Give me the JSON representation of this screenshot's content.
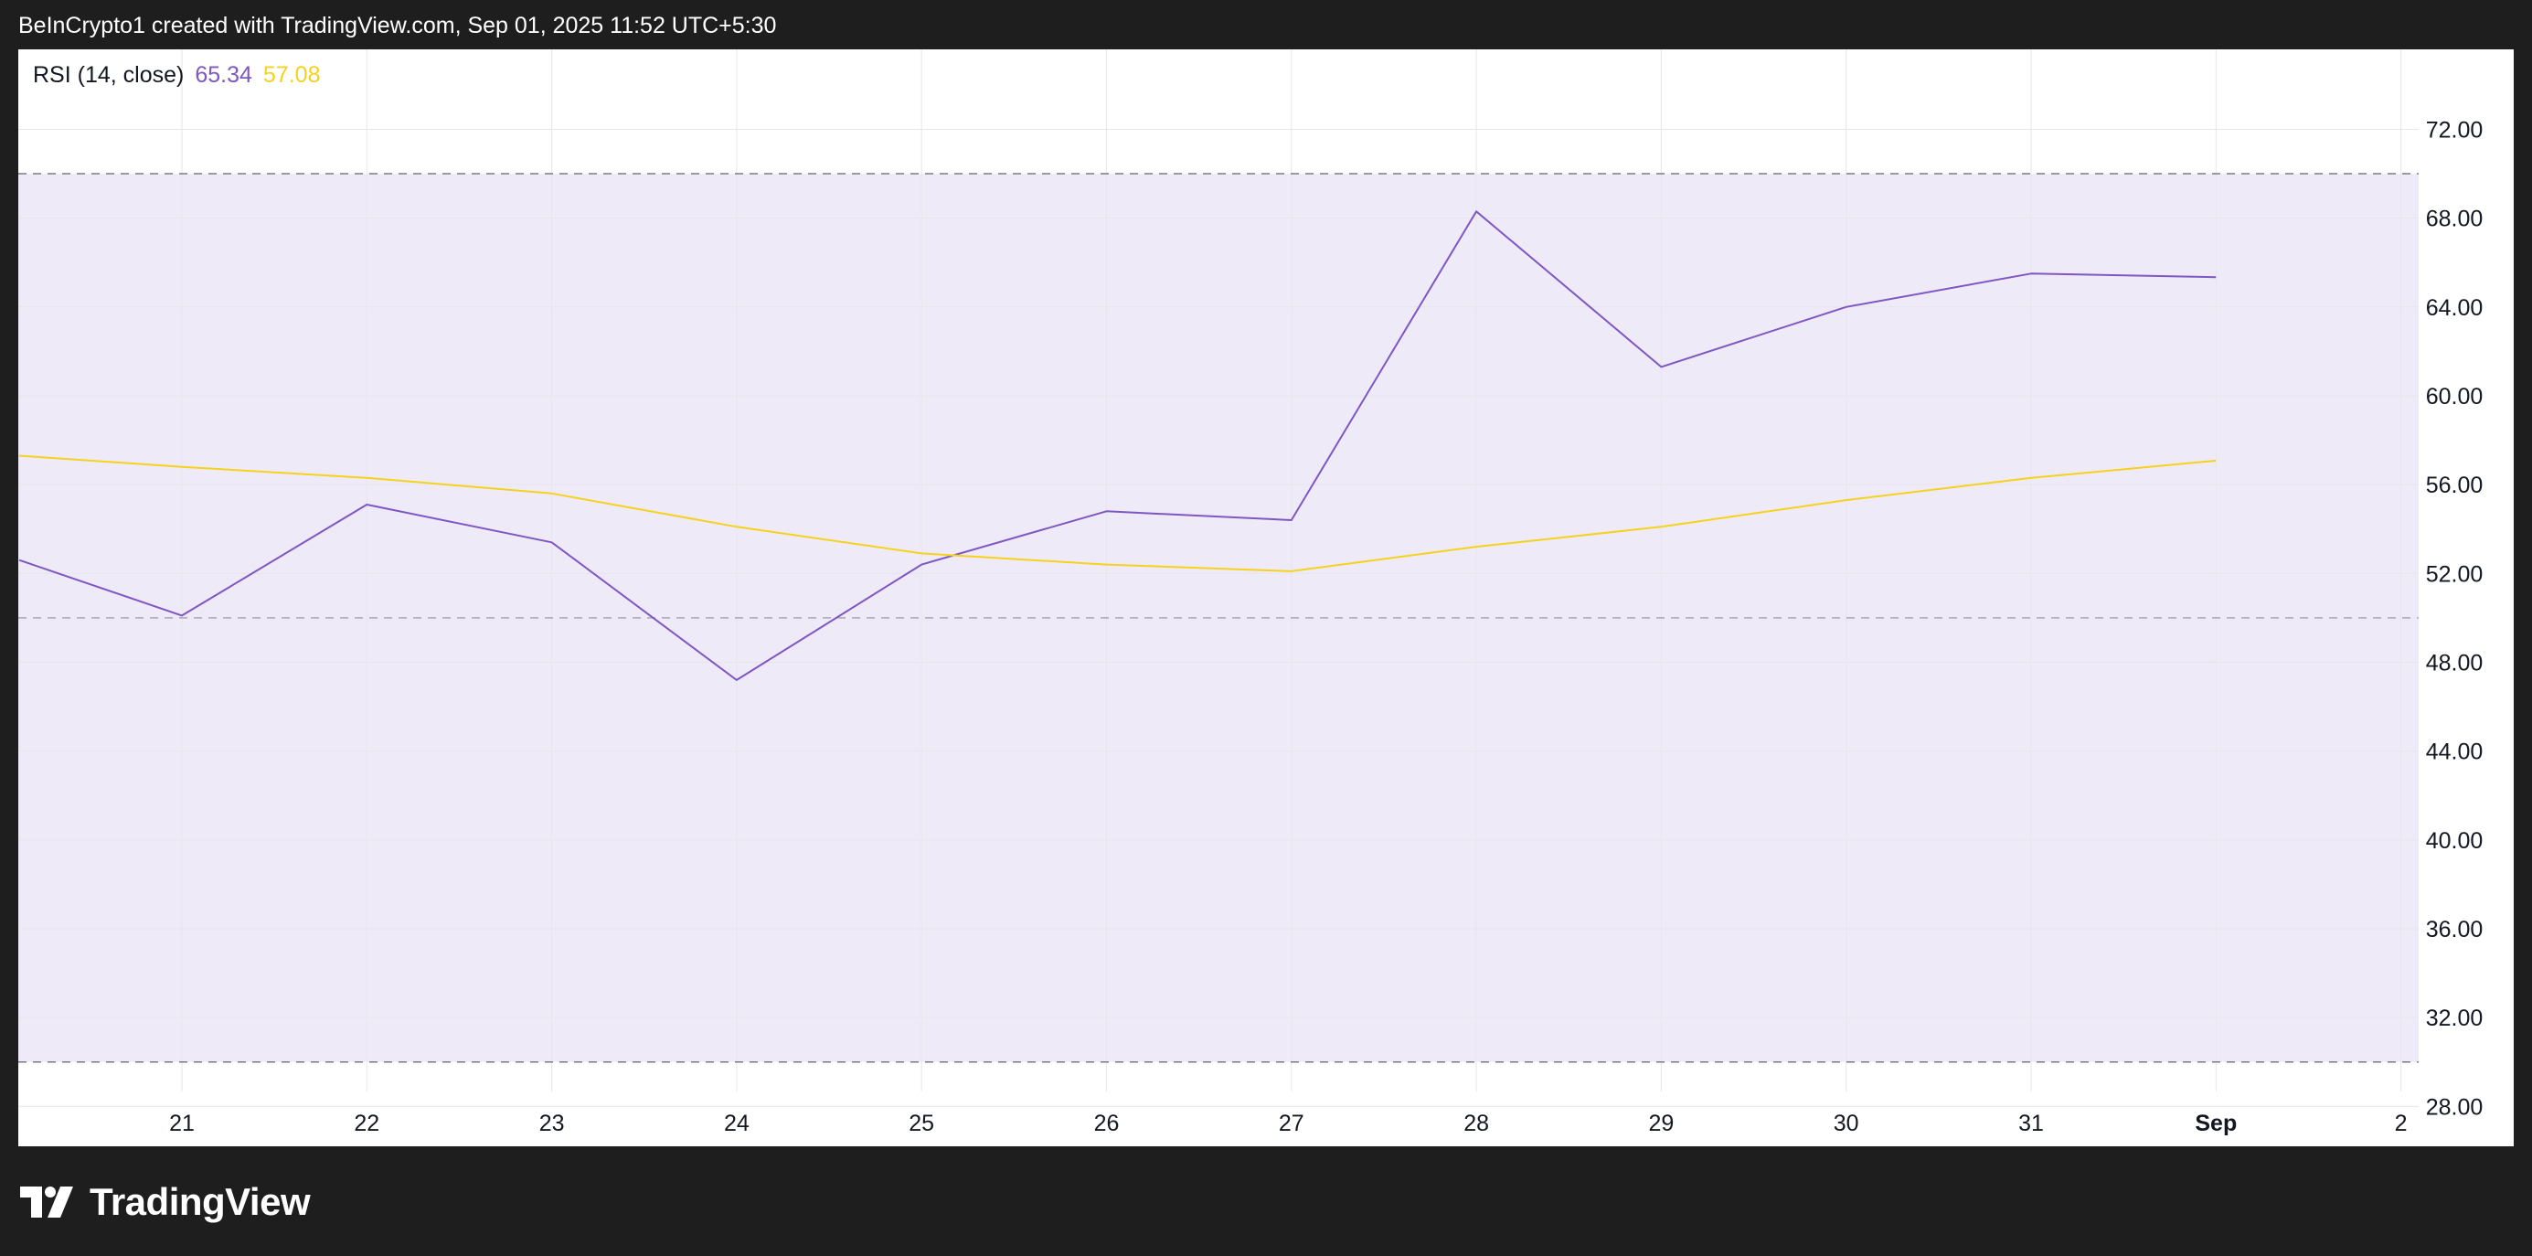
{
  "header": {
    "attribution": "BeInCrypto1 created with TradingView.com, Sep 01, 2025 11:52 UTC+5:30"
  },
  "legend": {
    "indicator": "RSI (14, close)",
    "rsi_value": "65.34",
    "ma_value": "57.08"
  },
  "footer": {
    "logo_icon": "tradingview-logo-icon",
    "brand": "TradingView"
  },
  "colors": {
    "rsi_line": "#7e57c2",
    "ma_line": "#f5d21d",
    "band_fill": "#efeaf8",
    "level_line": "#787b86",
    "background": "#ffffff",
    "frame": "#1e1e1e"
  },
  "chart_data": {
    "type": "line",
    "categories": [
      "21",
      "22",
      "23",
      "24",
      "25",
      "26",
      "27",
      "28",
      "29",
      "30",
      "31",
      "Sep",
      "2"
    ],
    "series": [
      {
        "name": "",
        "color": "#7e57c2",
        "values": [
          50.1,
          55.1,
          53.4,
          47.2,
          52.4,
          54.8,
          54.4,
          68.3,
          61.3,
          64.0,
          65.5,
          65.34,
          null
        ]
      },
      {
        "name": "",
        "color": "#f5d21d",
        "values": [
          56.8,
          56.3,
          55.6,
          54.1,
          52.9,
          52.4,
          52.1,
          53.2,
          54.1,
          55.3,
          56.3,
          57.08,
          null
        ]
      }
    ],
    "leading_points": {
      "x_offset": -0.88,
      "values": [
        52.6,
        57.3
      ]
    },
    "ylim": [
      26.2,
      75.6
    ],
    "yticks": [
      72,
      68,
      64,
      60,
      56,
      52,
      48,
      44,
      40,
      36,
      32,
      28
    ],
    "ytick_labels": [
      "72.00",
      "68.00",
      "64.00",
      "60.00",
      "56.00",
      "52.00",
      "48.00",
      "44.00",
      "40.00",
      "36.00",
      "32.00",
      "28.00"
    ],
    "levels": {
      "upper": 70,
      "middle": 50,
      "lower": 30
    },
    "y_axis_position": "right",
    "grid": true,
    "legend_position": "top-left"
  }
}
